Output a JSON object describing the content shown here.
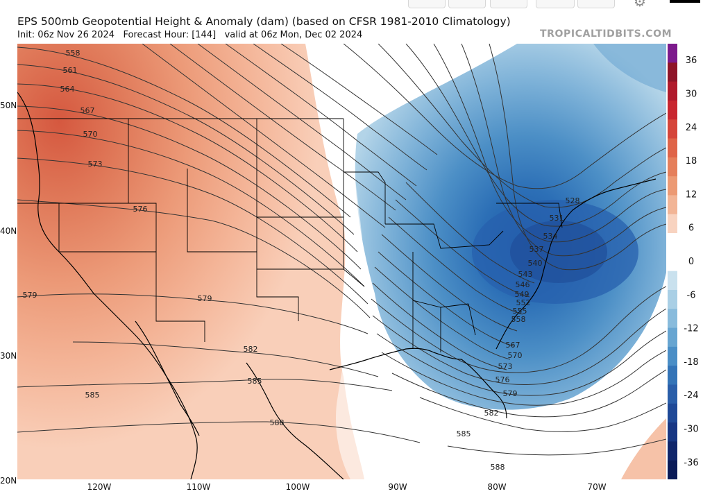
{
  "header": {
    "title": "EPS 500mb Geopotential Height & Anomaly (dam) (based on CFSR 1981-2010 Climatology)",
    "init": "Init: 06z Nov 26 2024",
    "forecast_hour": "Forecast Hour: [144]",
    "valid": "valid at 06z Mon, Dec 02 2024",
    "brand": "TROPICALTIDBITS.COM"
  },
  "latitude_labels": [
    "50N",
    "40N",
    "30N",
    "20N"
  ],
  "longitude_labels": [
    "120W",
    "110W",
    "100W",
    "90W",
    "80W",
    "70W"
  ],
  "colorbar": {
    "labels": [
      "36",
      "30",
      "24",
      "18",
      "12",
      "6",
      "0",
      "-6",
      "-12",
      "-18",
      "-24",
      "-30",
      "-36"
    ],
    "colors": [
      "#7c1a8c",
      "#8e1428",
      "#b01a2c",
      "#c8262f",
      "#d5453a",
      "#df6448",
      "#e57f5b",
      "#ec9a74",
      "#f2b596",
      "#f8d3c0",
      "#ffffff",
      "#ffffff",
      "#c9e1ee",
      "#a9cfe5",
      "#88bbdc",
      "#67a5d1",
      "#4a8ec6",
      "#3474b7",
      "#2a5ea9",
      "#1f4997",
      "#173683",
      "#10266b",
      "#0a1a57"
    ]
  },
  "contour_labels": {
    "west_column": [
      "558",
      "561",
      "564",
      "567",
      "570",
      "573",
      "576",
      "579"
    ],
    "west_mid": [
      "579",
      "582",
      "585"
    ],
    "east_column": [
      "528",
      "531",
      "534",
      "537",
      "540",
      "543",
      "546",
      "549",
      "552",
      "555",
      "558"
    ],
    "southeast_column": [
      "567",
      "570",
      "573",
      "576",
      "579",
      "582",
      "585",
      "588"
    ],
    "mexico": [
      "585",
      "588"
    ]
  },
  "map_data": {
    "field": "500mb geopotential height (dam) contours with anomaly shading",
    "ridge_center": "Pacific Northwest / western Canada (positive anomaly)",
    "trough_center": "Mid-Atlantic / Northeast US coast (negative anomaly)"
  }
}
